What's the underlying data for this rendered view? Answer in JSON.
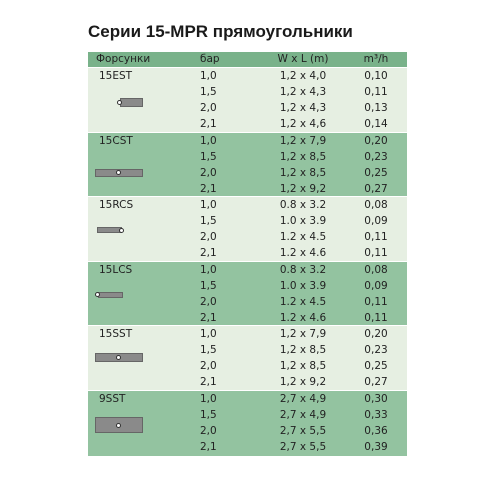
{
  "title": "Серии 15-MPR прямоугольники",
  "table": {
    "header": [
      "Форсунки",
      "бар",
      "W x L (m)",
      "m³/h"
    ],
    "groups": [
      {
        "name": "15EST",
        "rows": [
          [
            "1,0",
            "1,2 x 4,0",
            "0,10"
          ],
          [
            "1,5",
            "1,2 x 4,3",
            "0,11"
          ],
          [
            "2,0",
            "1,2 x 4,3",
            "0,13"
          ],
          [
            "2,1",
            "1,2 x 4,6",
            "0,14"
          ]
        ]
      },
      {
        "name": "15CST",
        "rows": [
          [
            "1,0",
            "1,2 x 7,9",
            "0,20"
          ],
          [
            "1,5",
            "1,2 x 8,5",
            "0,23"
          ],
          [
            "2,0",
            "1,2 x 8,5",
            "0,25"
          ],
          [
            "2,1",
            "1,2 x 9,2",
            "0,27"
          ]
        ]
      },
      {
        "name": "15RCS",
        "rows": [
          [
            "1,0",
            "0.8 x 3.2",
            "0,08"
          ],
          [
            "1,5",
            "1.0 x 3.9",
            "0,09"
          ],
          [
            "2,0",
            "1.2 x 4.5",
            "0,11"
          ],
          [
            "2,1",
            "1.2 x 4.6",
            "0,11"
          ]
        ]
      },
      {
        "name": "15LCS",
        "rows": [
          [
            "1,0",
            "0.8 x 3.2",
            "0,08"
          ],
          [
            "1,5",
            "1.0 x 3.9",
            "0,09"
          ],
          [
            "2,0",
            "1.2 x 4.5",
            "0,11"
          ],
          [
            "2,1",
            "1.2 x 4.6",
            "0,11"
          ]
        ]
      },
      {
        "name": "15SST",
        "rows": [
          [
            "1,0",
            "1,2 x 7,9",
            "0,20"
          ],
          [
            "1,5",
            "1,2 x 8,5",
            "0,23"
          ],
          [
            "2,0",
            "1,2 x 8,5",
            "0,25"
          ],
          [
            "2,1",
            "1,2 x 9,2",
            "0,27"
          ]
        ]
      },
      {
        "name": "9SST",
        "rows": [
          [
            "1,0",
            "2,7 x 4,9",
            "0,30"
          ],
          [
            "1,5",
            "2,7 x 4,9",
            "0,33"
          ],
          [
            "2,0",
            "2,7 x 5,5",
            "0,36"
          ],
          [
            "2,1",
            "2,7 x 5,5",
            "0,39"
          ]
        ]
      }
    ]
  }
}
